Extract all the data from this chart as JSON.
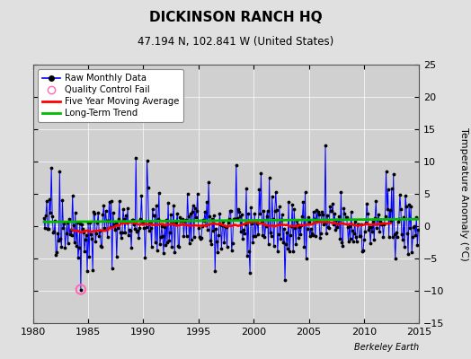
{
  "title": "DICKINSON RANCH HQ",
  "subtitle": "47.194 N, 102.841 W (United States)",
  "ylabel": "Temperature Anomaly (°C)",
  "watermark": "Berkeley Earth",
  "xlim": [
    1980,
    2015
  ],
  "ylim": [
    -15,
    25
  ],
  "yticks": [
    -15,
    -10,
    -5,
    0,
    5,
    10,
    15,
    20,
    25
  ],
  "xticks": [
    1980,
    1985,
    1990,
    1995,
    2000,
    2005,
    2010,
    2015
  ],
  "bg_color": "#e0e0e0",
  "plot_bg_color": "#d0d0d0",
  "raw_line_color": "#0000ff",
  "raw_dot_color": "#000000",
  "qc_fail_color": "#ff69b4",
  "moving_avg_color": "#ff0000",
  "trend_color": "#00bb00",
  "legend_labels": [
    "Raw Monthly Data",
    "Quality Control Fail",
    "Five Year Moving Average",
    "Long-Term Trend"
  ]
}
